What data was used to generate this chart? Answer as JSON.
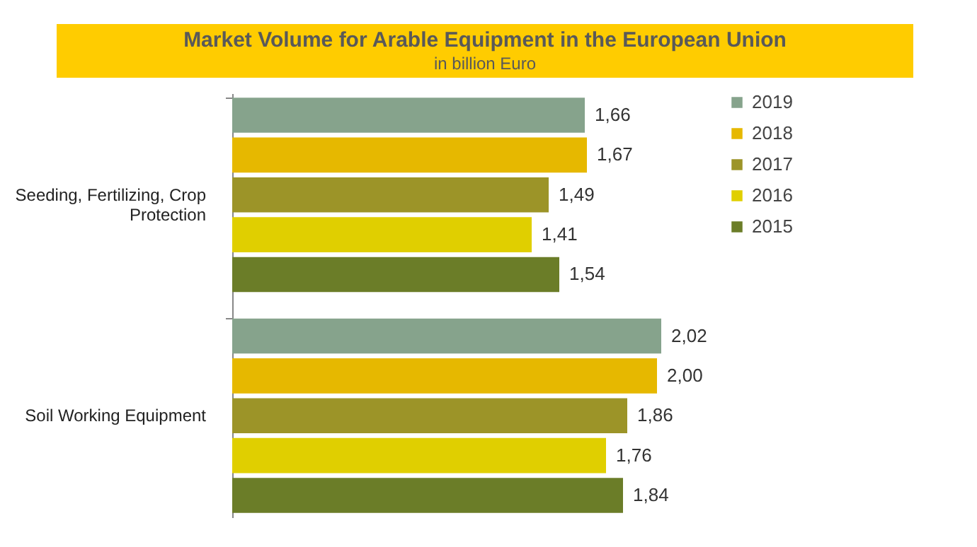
{
  "chart_data": {
    "type": "bar",
    "orientation": "horizontal",
    "title": "Market Volume for Arable Equipment in the European Union",
    "subtitle": "in billion Euro",
    "categories": [
      "Seeding, Fertilizing, Crop Protection",
      "Soil Working Equipment"
    ],
    "tick_labels": "y",
    "legend": "right",
    "series": [
      {
        "name": "2019",
        "color": "#86a38c",
        "values": [
          1.66,
          2.02
        ],
        "value_labels": [
          "1,66",
          "2,02"
        ]
      },
      {
        "name": "2018",
        "color": "#e6b800",
        "values": [
          1.67,
          2.0
        ],
        "value_labels": [
          "1,67",
          "2,00"
        ]
      },
      {
        "name": "2017",
        "color": "#9c9428",
        "values": [
          1.49,
          1.86
        ],
        "value_labels": [
          "1,49",
          "1,86"
        ]
      },
      {
        "name": "2016",
        "color": "#e0cf00",
        "values": [
          1.41,
          1.76
        ],
        "value_labels": [
          "1,41",
          "1,76"
        ]
      },
      {
        "name": "2015",
        "color": "#6b7d28",
        "values": [
          1.54,
          1.84
        ],
        "value_labels": [
          "1,54",
          "1,84"
        ]
      }
    ]
  }
}
